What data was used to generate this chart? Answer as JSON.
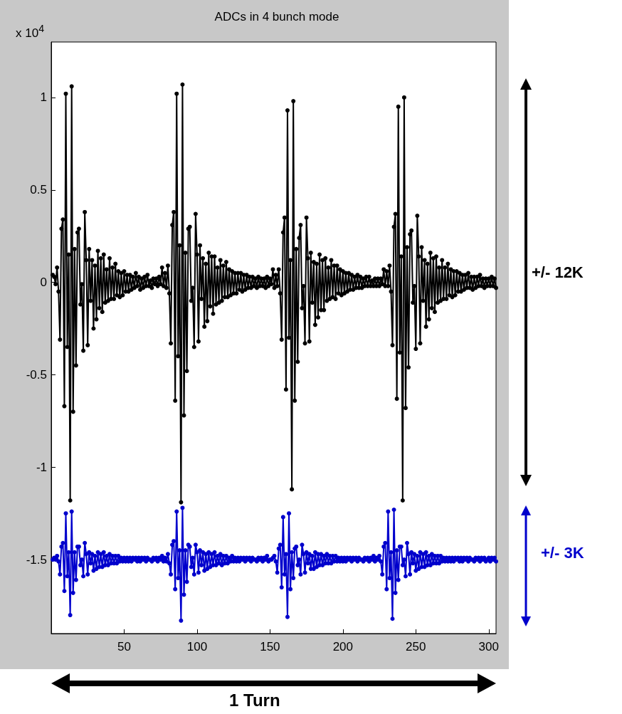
{
  "chart_data": {
    "type": "line",
    "title": "ADCs in 4 bunch mode",
    "annotations": [
      "x 10$^{4}$",
      "+/- 12K",
      "+/- 3K",
      "1 Turn"
    ],
    "x": [
      1,
      2,
      3,
      4,
      5,
      6,
      7,
      8,
      9,
      10,
      11,
      12,
      13,
      14,
      15,
      16,
      17,
      18,
      19,
      20,
      21,
      22,
      23,
      24,
      25,
      26,
      27,
      28,
      29,
      30,
      31,
      32,
      33,
      34,
      35,
      36,
      37,
      38,
      39,
      40,
      41,
      42,
      43,
      44,
      45,
      46,
      47,
      48,
      49,
      50,
      51,
      52,
      53,
      54,
      55,
      56,
      57,
      58,
      59,
      60,
      61,
      62,
      63,
      64,
      65,
      66,
      67,
      68,
      69,
      70,
      71,
      72,
      73,
      74,
      75,
      76,
      77,
      78,
      79,
      80,
      81,
      82,
      83,
      84,
      85,
      86,
      87,
      88,
      89,
      90,
      91,
      92,
      93,
      94,
      95,
      96,
      97,
      98,
      99,
      100,
      101,
      102,
      103,
      104,
      105,
      106,
      107,
      108,
      109,
      110,
      111,
      112,
      113,
      114,
      115,
      116,
      117,
      118,
      119,
      120,
      121,
      122,
      123,
      124,
      125,
      126,
      127,
      128,
      129,
      130,
      131,
      132,
      133,
      134,
      135,
      136,
      137,
      138,
      139,
      140,
      141,
      142,
      143,
      144,
      145,
      146,
      147,
      148,
      149,
      150,
      151,
      152,
      153,
      154,
      155,
      156,
      157,
      158,
      159,
      160,
      161,
      162,
      163,
      164,
      165,
      166,
      167,
      168,
      169,
      170,
      171,
      172,
      173,
      174,
      175,
      176,
      177,
      178,
      179,
      180,
      181,
      182,
      183,
      184,
      185,
      186,
      187,
      188,
      189,
      190,
      191,
      192,
      193,
      194,
      195,
      196,
      197,
      198,
      199,
      200,
      201,
      202,
      203,
      204,
      205,
      206,
      207,
      208,
      209,
      210,
      211,
      212,
      213,
      214,
      215,
      216,
      217,
      218,
      219,
      220,
      221,
      222,
      223,
      224,
      225,
      226,
      227,
      228,
      229,
      230,
      231,
      232,
      233,
      234,
      235,
      236,
      237,
      238,
      239,
      240,
      241,
      242,
      243,
      244,
      245,
      246,
      247,
      248,
      249,
      250,
      251,
      252,
      253,
      254,
      255,
      256,
      257,
      258,
      259,
      260,
      261,
      262,
      263,
      264,
      265,
      266,
      267,
      268,
      269,
      270,
      271,
      272,
      273,
      274,
      275,
      276,
      277,
      278,
      279,
      280,
      281,
      282,
      283,
      284,
      285,
      286,
      287,
      288,
      289,
      290,
      291,
      292,
      293,
      294,
      295,
      296,
      297,
      298,
      299,
      300,
      301,
      302,
      303,
      304,
      305
    ],
    "series": [
      {
        "color": "#000000",
        "values": [
          0.04,
          0.03,
          -0.01,
          0.08,
          -0.05,
          -0.31,
          0.29,
          0.34,
          -0.67,
          1.02,
          -0.35,
          0.15,
          -1.18,
          1.06,
          -0.7,
          0.18,
          -0.45,
          0.27,
          0.29,
          -0.12,
          -0.01,
          -0.37,
          0.38,
          0.12,
          -0.34,
          0.18,
          -0.1,
          0.12,
          -0.25,
          0.09,
          -0.2,
          0.17,
          -0.14,
          0.13,
          -0.16,
          0.15,
          -0.11,
          0.07,
          -0.1,
          0.13,
          -0.09,
          0.08,
          -0.09,
          0.1,
          -0.07,
          0.06,
          -0.08,
          0.05,
          -0.07,
          0.06,
          -0.05,
          0.04,
          -0.05,
          0.04,
          -0.04,
          0.03,
          -0.03,
          0.05,
          -0.02,
          0.03,
          -0.04,
          0.02,
          -0.03,
          0.03,
          -0.02,
          0.04,
          -0.02,
          0.01,
          -0.03,
          0.02,
          -0.01,
          0.02,
          -0.02,
          0.03,
          -0.01,
          0.08,
          -0.02,
          0.05,
          -0.03,
          0.09,
          -0.06,
          -0.33,
          0.31,
          0.38,
          -0.64,
          1.02,
          -0.4,
          0.2,
          -1.19,
          1.07,
          -0.72,
          0.16,
          -0.48,
          0.29,
          0.3,
          -0.1,
          -0.03,
          -0.35,
          0.37,
          0.15,
          -0.32,
          0.2,
          -0.09,
          0.13,
          -0.24,
          0.1,
          -0.21,
          0.16,
          -0.13,
          0.14,
          -0.17,
          0.14,
          -0.12,
          0.08,
          -0.11,
          0.12,
          -0.1,
          0.09,
          -0.08,
          0.11,
          -0.08,
          0.07,
          -0.07,
          0.06,
          -0.06,
          0.05,
          -0.06,
          0.05,
          -0.04,
          0.05,
          -0.05,
          0.04,
          -0.04,
          0.04,
          -0.03,
          0.03,
          -0.03,
          0.03,
          -0.02,
          0.02,
          -0.03,
          0.03,
          -0.02,
          0.02,
          -0.02,
          0.02,
          -0.03,
          0.03,
          -0.02,
          0.02,
          -0.01,
          0.07,
          -0.03,
          0.04,
          -0.02,
          0.07,
          -0.06,
          -0.31,
          0.27,
          0.35,
          -0.58,
          0.93,
          -0.3,
          0.12,
          -1.12,
          0.98,
          -0.64,
          0.18,
          -0.43,
          0.24,
          0.31,
          -0.14,
          -0.02,
          -0.33,
          0.35,
          0.13,
          -0.32,
          0.16,
          -0.11,
          0.11,
          -0.23,
          0.1,
          -0.19,
          0.15,
          -0.15,
          0.12,
          -0.15,
          0.13,
          -0.1,
          0.08,
          -0.09,
          0.12,
          -0.08,
          0.09,
          -0.09,
          0.09,
          -0.06,
          0.07,
          -0.07,
          0.06,
          -0.06,
          0.05,
          -0.05,
          0.05,
          -0.04,
          0.04,
          -0.04,
          0.03,
          -0.03,
          0.04,
          -0.03,
          0.03,
          -0.03,
          0.02,
          -0.02,
          0.03,
          -0.02,
          0.03,
          -0.02,
          0.01,
          -0.02,
          0.02,
          -0.02,
          0.02,
          -0.02,
          0.02,
          -0.01,
          0.07,
          -0.02,
          0.06,
          -0.02,
          0.09,
          -0.05,
          -0.34,
          0.3,
          0.37,
          -0.63,
          0.95,
          -0.38,
          0.14,
          -1.18,
          1.0,
          -0.68,
          0.19,
          -0.46,
          0.26,
          0.28,
          -0.11,
          -0.02,
          -0.36,
          0.36,
          0.14,
          -0.33,
          0.19,
          -0.1,
          0.12,
          -0.24,
          0.1,
          -0.2,
          0.16,
          -0.14,
          0.13,
          -0.16,
          0.14,
          -0.11,
          0.08,
          -0.1,
          0.12,
          -0.09,
          0.08,
          -0.09,
          0.1,
          -0.07,
          0.07,
          -0.08,
          0.06,
          -0.07,
          0.06,
          -0.05,
          0.05,
          -0.05,
          0.04,
          -0.04,
          0.04,
          -0.03,
          0.05,
          -0.03,
          0.03,
          -0.04,
          0.03,
          -0.03,
          0.03,
          -0.02,
          0.04,
          -0.02,
          0.02,
          -0.03,
          0.02,
          -0.02,
          0.02,
          -0.02,
          0.03,
          -0.02,
          0.02,
          -0.03
        ]
      },
      {
        "color": "#0000cc",
        "values": [
          -1.5,
          -1.49,
          -1.5,
          -1.48,
          -1.51,
          -1.58,
          -1.43,
          -1.41,
          -1.67,
          -1.25,
          -1.59,
          -1.46,
          -1.8,
          -1.24,
          -1.68,
          -1.46,
          -1.61,
          -1.43,
          -1.43,
          -1.53,
          -1.5,
          -1.59,
          -1.41,
          -1.47,
          -1.58,
          -1.46,
          -1.52,
          -1.47,
          -1.56,
          -1.48,
          -1.55,
          -1.46,
          -1.54,
          -1.47,
          -1.54,
          -1.46,
          -1.53,
          -1.48,
          -1.53,
          -1.47,
          -1.52,
          -1.48,
          -1.52,
          -1.48,
          -1.52,
          -1.48,
          -1.51,
          -1.49,
          -1.51,
          -1.49,
          -1.51,
          -1.49,
          -1.51,
          -1.49,
          -1.51,
          -1.49,
          -1.5,
          -1.49,
          -1.51,
          -1.49,
          -1.51,
          -1.49,
          -1.5,
          -1.49,
          -1.51,
          -1.49,
          -1.5,
          -1.5,
          -1.51,
          -1.49,
          -1.5,
          -1.49,
          -1.51,
          -1.49,
          -1.5,
          -1.48,
          -1.51,
          -1.49,
          -1.51,
          -1.47,
          -1.52,
          -1.58,
          -1.42,
          -1.4,
          -1.66,
          -1.24,
          -1.6,
          -1.45,
          -1.83,
          -1.22,
          -1.69,
          -1.45,
          -1.62,
          -1.42,
          -1.43,
          -1.54,
          -1.49,
          -1.58,
          -1.42,
          -1.46,
          -1.57,
          -1.45,
          -1.53,
          -1.46,
          -1.56,
          -1.47,
          -1.55,
          -1.46,
          -1.54,
          -1.47,
          -1.53,
          -1.46,
          -1.53,
          -1.48,
          -1.52,
          -1.47,
          -1.53,
          -1.48,
          -1.52,
          -1.48,
          -1.52,
          -1.49,
          -1.51,
          -1.48,
          -1.51,
          -1.49,
          -1.51,
          -1.49,
          -1.51,
          -1.49,
          -1.5,
          -1.49,
          -1.51,
          -1.49,
          -1.5,
          -1.49,
          -1.51,
          -1.49,
          -1.5,
          -1.5,
          -1.51,
          -1.49,
          -1.5,
          -1.49,
          -1.51,
          -1.49,
          -1.5,
          -1.48,
          -1.51,
          -1.5,
          -1.5,
          -1.49,
          -1.48,
          -1.51,
          -1.57,
          -1.44,
          -1.42,
          -1.65,
          -1.27,
          -1.58,
          -1.47,
          -1.81,
          -1.25,
          -1.66,
          -1.46,
          -1.6,
          -1.44,
          -1.43,
          -1.53,
          -1.5,
          -1.58,
          -1.42,
          -1.47,
          -1.57,
          -1.46,
          -1.52,
          -1.47,
          -1.55,
          -1.48,
          -1.55,
          -1.46,
          -1.54,
          -1.47,
          -1.53,
          -1.47,
          -1.53,
          -1.48,
          -1.52,
          -1.47,
          -1.52,
          -1.48,
          -1.52,
          -1.48,
          -1.51,
          -1.48,
          -1.51,
          -1.49,
          -1.51,
          -1.49,
          -1.51,
          -1.49,
          -1.51,
          -1.49,
          -1.5,
          -1.49,
          -1.51,
          -1.49,
          -1.5,
          -1.49,
          -1.51,
          -1.49,
          -1.5,
          -1.5,
          -1.51,
          -1.49,
          -1.5,
          -1.49,
          -1.51,
          -1.49,
          -1.5,
          -1.48,
          -1.51,
          -1.49,
          -1.5,
          -1.48,
          -1.51,
          -1.58,
          -1.43,
          -1.41,
          -1.66,
          -1.24,
          -1.6,
          -1.46,
          -1.82,
          -1.23,
          -1.68,
          -1.45,
          -1.61,
          -1.43,
          -1.43,
          -1.53,
          -1.5,
          -1.59,
          -1.41,
          -1.47,
          -1.58,
          -1.46,
          -1.52,
          -1.47,
          -1.56,
          -1.48,
          -1.55,
          -1.46,
          -1.54,
          -1.47,
          -1.54,
          -1.46,
          -1.53,
          -1.48,
          -1.53,
          -1.47,
          -1.52,
          -1.48,
          -1.52,
          -1.48,
          -1.52,
          -1.48,
          -1.51,
          -1.49,
          -1.51,
          -1.49,
          -1.51,
          -1.49,
          -1.51,
          -1.49,
          -1.51,
          -1.49,
          -1.5,
          -1.49,
          -1.51,
          -1.49,
          -1.51,
          -1.49,
          -1.5,
          -1.49,
          -1.51,
          -1.49,
          -1.5,
          -1.5,
          -1.51,
          -1.49,
          -1.5,
          -1.49,
          -1.51,
          -1.49,
          -1.5,
          -1.49,
          -1.51,
          -1.5,
          -1.49,
          -1.51,
          -1.49,
          -1.5,
          -1.49,
          -1.51
        ]
      }
    ],
    "xlim": [
      0,
      305
    ],
    "xticks": [
      50,
      100,
      150,
      200,
      250,
      300
    ],
    "ylim": [
      -1.9,
      1.3
    ],
    "yticks": [
      -1.5,
      -1,
      -0.5,
      0,
      0.5,
      1
    ],
    "grid": false,
    "marker": "circle",
    "line_style": "solid"
  }
}
